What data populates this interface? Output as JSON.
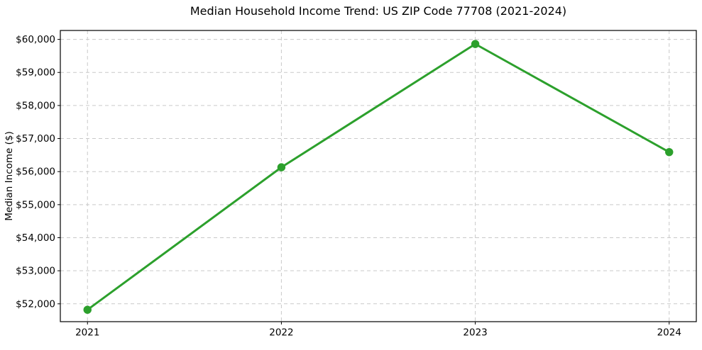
{
  "chart_data": {
    "type": "line",
    "title": "Median Household Income Trend: US ZIP Code 77708 (2021-2024)",
    "xlabel": "",
    "ylabel": "Median Income ($)",
    "x": [
      2021,
      2022,
      2023,
      2024
    ],
    "y": [
      51820,
      56130,
      59860,
      56590
    ],
    "x_tick_labels": [
      "2021",
      "2022",
      "2023",
      "2024"
    ],
    "y_ticks": [
      52000,
      53000,
      54000,
      55000,
      56000,
      57000,
      58000,
      59000,
      60000
    ],
    "y_tick_labels": [
      "$52,000",
      "$53,000",
      "$54,000",
      "$55,000",
      "$56,000",
      "$57,000",
      "$58,000",
      "$59,000",
      "$60,000"
    ],
    "y_tick_prefix": "$",
    "xlim": [
      2020.86,
      2024.14
    ],
    "ylim": [
      51460,
      60270
    ],
    "grid": "both",
    "grid_style": "dashed",
    "legend": "none",
    "marker": "circle",
    "colors": {
      "line": "#2ca02c",
      "marker": "#2ca02c",
      "grid": "#c9c9c9",
      "axis": "#000000",
      "text": "#000000",
      "background": "#ffffff"
    }
  }
}
